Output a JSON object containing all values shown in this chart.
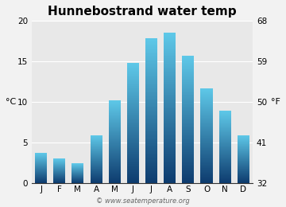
{
  "title": "Hunnebostrand water temp",
  "months": [
    "J",
    "F",
    "M",
    "A",
    "M",
    "J",
    "J",
    "A",
    "S",
    "O",
    "N",
    "D"
  ],
  "values_c": [
    3.7,
    3.0,
    2.4,
    5.9,
    10.2,
    14.8,
    17.8,
    18.5,
    15.7,
    11.7,
    8.9,
    5.9
  ],
  "ylim_c": [
    0,
    20
  ],
  "yticks_c": [
    0,
    5,
    10,
    15,
    20
  ],
  "yticks_f": [
    32,
    41,
    50,
    59,
    68
  ],
  "ylabel_left": "°C",
  "ylabel_right": "°F",
  "bar_color_top": "#5ec8e8",
  "bar_color_bottom": "#0d3b6e",
  "bg_color": "#e8e8e8",
  "fig_bg_color": "#f2f2f2",
  "title_fontsize": 11,
  "tick_fontsize": 7.5,
  "ylabel_fontsize": 8,
  "watermark": "© www.seatemperature.org",
  "watermark_fontsize": 6,
  "grid_color": "#ffffff",
  "bar_width": 0.65
}
